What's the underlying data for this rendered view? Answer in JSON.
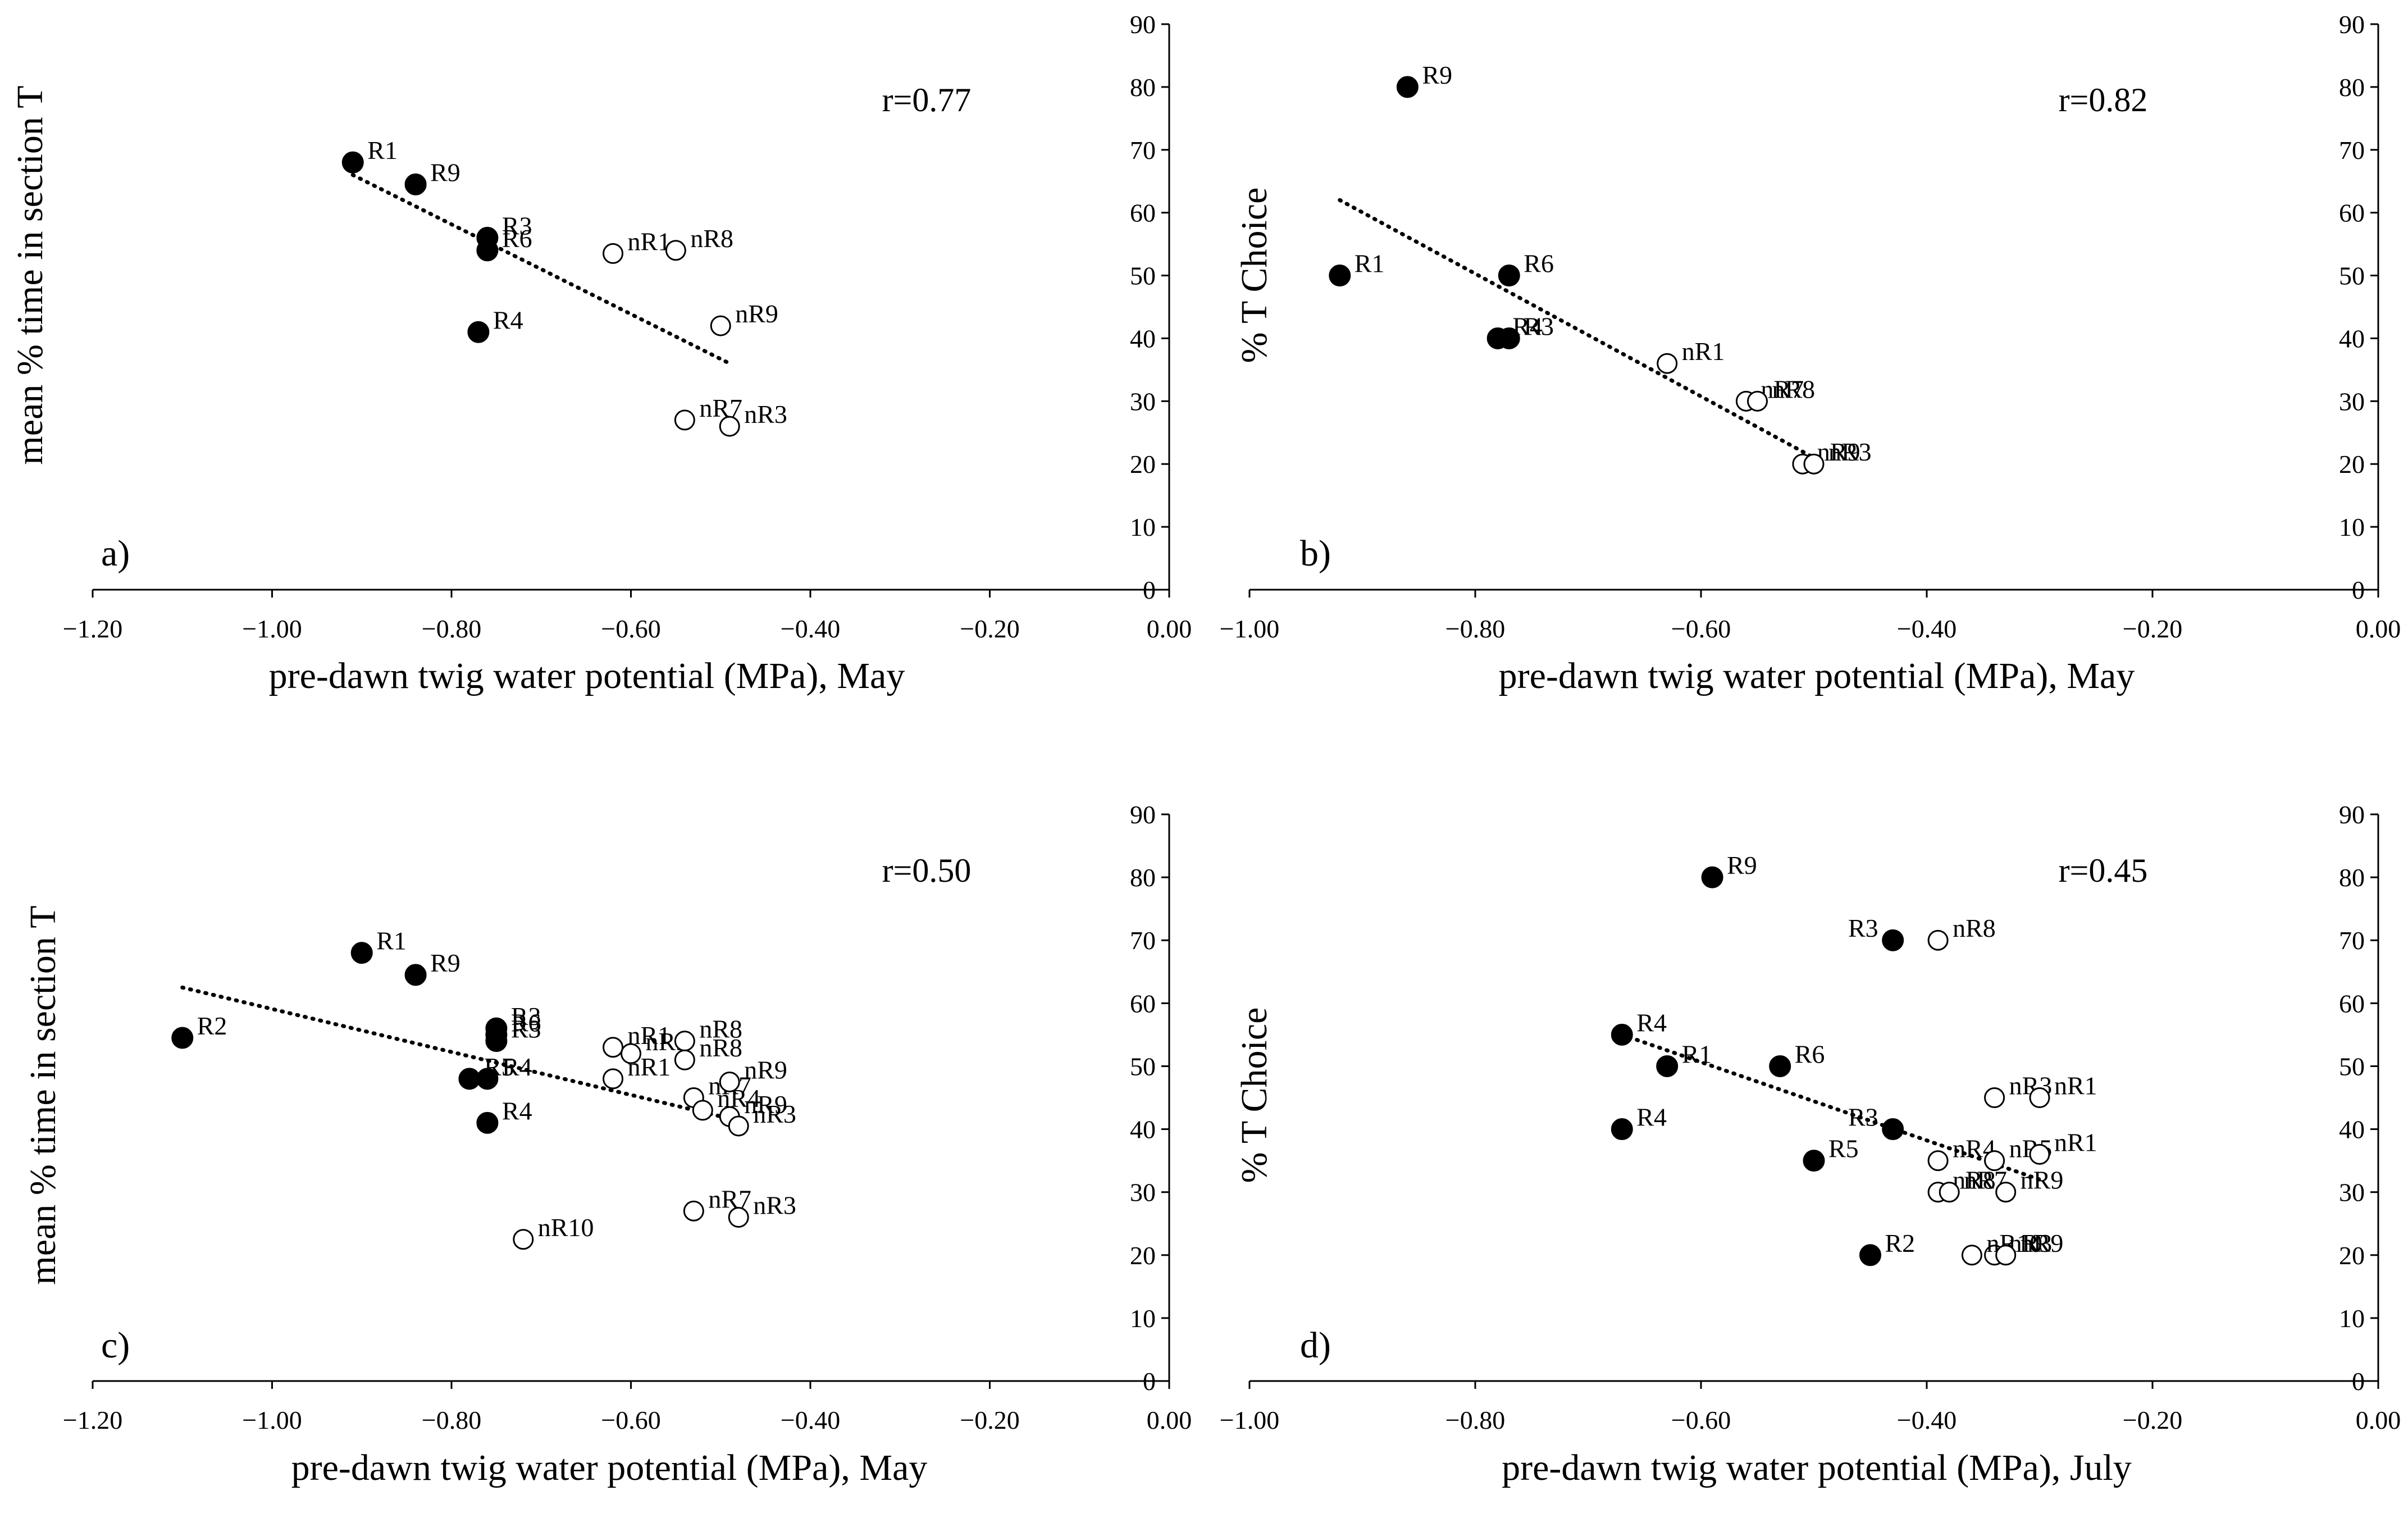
{
  "chart_data": [
    {
      "type": "scatter",
      "panel_label": "a)",
      "xlabel": "pre-dawn twig water potential (MPa), May",
      "ylabel": "mean % time in section T",
      "xlim": [
        -1.2,
        0
      ],
      "ylim": [
        0,
        90
      ],
      "xticks": [
        "−1.20",
        "−1.00",
        "−0.80",
        "−0.60",
        "−0.40",
        "−0.20",
        "0.00"
      ],
      "yticks": [
        "0",
        "10",
        "20",
        "30",
        "40",
        "50",
        "60",
        "70",
        "80",
        "90"
      ],
      "y_axis_side": "right",
      "grid": false,
      "annotation": "r=0.77",
      "trendline": {
        "style": "dotted",
        "x": [
          -0.91,
          -0.49
        ],
        "y": [
          66,
          36
        ]
      },
      "series": [
        {
          "marker": "filled-circle",
          "points": [
            {
              "label": "R1",
              "x": -0.91,
              "y": 68
            },
            {
              "label": "R9",
              "x": -0.84,
              "y": 64.5
            },
            {
              "label": "R3",
              "x": -0.76,
              "y": 56
            },
            {
              "label": "R6",
              "x": -0.76,
              "y": 54
            },
            {
              "label": "R4",
              "x": -0.77,
              "y": 41
            }
          ]
        },
        {
          "marker": "open-circle",
          "points": [
            {
              "label": "nR1",
              "x": -0.62,
              "y": 53.5
            },
            {
              "label": "nR8",
              "x": -0.55,
              "y": 54
            },
            {
              "label": "nR9",
              "x": -0.5,
              "y": 42
            },
            {
              "label": "nR7",
              "x": -0.54,
              "y": 27
            },
            {
              "label": "nR3",
              "x": -0.49,
              "y": 26
            }
          ]
        }
      ]
    },
    {
      "type": "scatter",
      "panel_label": "b)",
      "xlabel": "pre-dawn twig water potential (MPa), May",
      "ylabel": "% T Choice",
      "xlim": [
        -1,
        0
      ],
      "ylim": [
        0,
        90
      ],
      "xticks": [
        "−1.00",
        "−0.80",
        "−0.60",
        "−0.40",
        "−0.20",
        "0.00"
      ],
      "yticks": [
        "0",
        "10",
        "20",
        "30",
        "40",
        "50",
        "60",
        "70",
        "80",
        "90"
      ],
      "y_axis_side": "right",
      "grid": false,
      "annotation": "r=0.82",
      "trendline": {
        "style": "dotted",
        "x": [
          -0.92,
          -0.5
        ],
        "y": [
          62,
          21
        ]
      },
      "series": [
        {
          "marker": "filled-circle",
          "points": [
            {
              "label": "R9",
              "x": -0.86,
              "y": 80
            },
            {
              "label": "R1",
              "x": -0.92,
              "y": 50
            },
            {
              "label": "R6",
              "x": -0.77,
              "y": 50
            },
            {
              "label": "R4",
              "x": -0.78,
              "y": 40
            },
            {
              "label": "R3",
              "x": -0.77,
              "y": 40
            }
          ]
        },
        {
          "marker": "open-circle",
          "points": [
            {
              "label": "nR1",
              "x": -0.63,
              "y": 36
            },
            {
              "label": "nR7",
              "x": -0.56,
              "y": 30
            },
            {
              "label": "nR8",
              "x": -0.55,
              "y": 30
            },
            {
              "label": "nR9",
              "x": -0.51,
              "y": 20
            },
            {
              "label": "nR3",
              "x": -0.5,
              "y": 20
            }
          ]
        }
      ]
    },
    {
      "type": "scatter",
      "panel_label": "c)",
      "xlabel": "pre-dawn twig water potential (MPa), May",
      "ylabel": "mean % time in section T",
      "xlim": [
        -1.2,
        0
      ],
      "ylim": [
        0,
        90
      ],
      "xticks": [
        "−1.20",
        "−1.00",
        "−0.80",
        "−0.60",
        "−0.40",
        "−0.20",
        "0.00"
      ],
      "yticks": [
        "0",
        "10",
        "20",
        "30",
        "40",
        "50",
        "60",
        "70",
        "80",
        "90"
      ],
      "y_axis_side": "right",
      "grid": false,
      "annotation": "r=0.50",
      "trendline": {
        "style": "dotted",
        "x": [
          -1.1,
          -0.47
        ],
        "y": [
          62.5,
          41
        ]
      },
      "series": [
        {
          "marker": "filled-circle",
          "points": [
            {
              "label": "R1",
              "x": -0.9,
              "y": 68
            },
            {
              "label": "R9",
              "x": -0.84,
              "y": 64.5
            },
            {
              "label": "R2",
              "x": -1.1,
              "y": 54.5
            },
            {
              "label": "R3",
              "x": -0.75,
              "y": 56
            },
            {
              "label": "R6",
              "x": -0.75,
              "y": 55
            },
            {
              "label": "R3",
              "x": -0.75,
              "y": 54
            },
            {
              "label": "R5",
              "x": -0.78,
              "y": 48
            },
            {
              "label": "R4",
              "x": -0.76,
              "y": 48
            },
            {
              "label": "R4",
              "x": -0.76,
              "y": 41
            }
          ]
        },
        {
          "marker": "open-circle",
          "points": [
            {
              "label": "nR5",
              "x": -0.6,
              "y": 52
            },
            {
              "label": "nR1",
              "x": -0.62,
              "y": 53
            },
            {
              "label": "nR8",
              "x": -0.54,
              "y": 54
            },
            {
              "label": "nR8",
              "x": -0.54,
              "y": 51
            },
            {
              "label": "nR1",
              "x": -0.62,
              "y": 48
            },
            {
              "label": "nR7",
              "x": -0.53,
              "y": 45
            },
            {
              "label": "nR4",
              "x": -0.52,
              "y": 43
            },
            {
              "label": "nR9",
              "x": -0.49,
              "y": 47.5
            },
            {
              "label": "nR9",
              "x": -0.49,
              "y": 42
            },
            {
              "label": "nR3",
              "x": -0.48,
              "y": 40.5
            },
            {
              "label": "nR7",
              "x": -0.53,
              "y": 27
            },
            {
              "label": "nR3",
              "x": -0.48,
              "y": 26
            },
            {
              "label": "nR10",
              "x": -0.72,
              "y": 22.5
            }
          ]
        }
      ]
    },
    {
      "type": "scatter",
      "panel_label": "d)",
      "xlabel": "pre-dawn twig water potential (MPa), July",
      "ylabel": "% T Choice",
      "xlim": [
        -1,
        0
      ],
      "ylim": [
        0,
        90
      ],
      "xticks": [
        "−1.00",
        "−0.80",
        "−0.60",
        "−0.40",
        "−0.20",
        "0.00"
      ],
      "yticks": [
        "0",
        "10",
        "20",
        "30",
        "40",
        "50",
        "60",
        "70",
        "80",
        "90"
      ],
      "y_axis_side": "right",
      "grid": false,
      "annotation": "r=0.45",
      "trendline": {
        "style": "dotted",
        "x": [
          -0.67,
          -0.3
        ],
        "y": [
          55,
          32
        ]
      },
      "series": [
        {
          "marker": "filled-circle",
          "points": [
            {
              "label": "R9",
              "x": -0.59,
              "y": 80
            },
            {
              "label": "R3",
              "x": -0.43,
              "y": 70
            },
            {
              "label": "R4",
              "x": -0.67,
              "y": 55
            },
            {
              "label": "R1",
              "x": -0.63,
              "y": 50
            },
            {
              "label": "R6",
              "x": -0.53,
              "y": 50
            },
            {
              "label": "R3",
              "x": -0.43,
              "y": 40
            },
            {
              "label": "R4",
              "x": -0.67,
              "y": 40
            },
            {
              "label": "R5",
              "x": -0.5,
              "y": 35
            },
            {
              "label": "R2",
              "x": -0.45,
              "y": 20
            }
          ]
        },
        {
          "marker": "open-circle",
          "points": [
            {
              "label": "nR8",
              "x": -0.39,
              "y": 70
            },
            {
              "label": "nR3",
              "x": -0.34,
              "y": 45
            },
            {
              "label": "nR1",
              "x": -0.3,
              "y": 45
            },
            {
              "label": "nR4",
              "x": -0.39,
              "y": 35
            },
            {
              "label": "nR5",
              "x": -0.34,
              "y": 35
            },
            {
              "label": "nR1",
              "x": -0.3,
              "y": 36
            },
            {
              "label": "nR8",
              "x": -0.39,
              "y": 30
            },
            {
              "label": "nR7",
              "x": -0.38,
              "y": 30
            },
            {
              "label": "nR9",
              "x": -0.33,
              "y": 30
            },
            {
              "label": "nR3",
              "x": -0.34,
              "y": 20
            },
            {
              "label": "nR10",
              "x": -0.36,
              "y": 20
            },
            {
              "label": "nR9",
              "x": -0.33,
              "y": 20
            }
          ]
        }
      ]
    }
  ]
}
